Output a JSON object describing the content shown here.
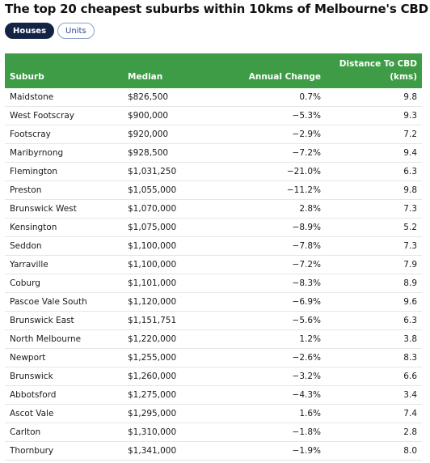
{
  "title": "The top 20 cheapest suburbs within 10kms of Melbourne's CBD",
  "toggles": [
    {
      "label": "Houses",
      "active": true
    },
    {
      "label": "Units",
      "active": false
    }
  ],
  "chart_data": {
    "type": "table",
    "columns": [
      "Suburb",
      "Median",
      "Annual Change",
      "Distance To CBD (kms)"
    ],
    "column_header_lines": [
      [
        "Suburb"
      ],
      [
        "Median"
      ],
      [
        "Annual Change"
      ],
      [
        "Distance To CBD",
        "(kms)"
      ]
    ],
    "rows": [
      {
        "suburb": "Maidstone",
        "median": "$826,500",
        "change": "0.7%",
        "distance": "9.8"
      },
      {
        "suburb": "West Footscray",
        "median": "$900,000",
        "change": "−5.3%",
        "distance": "9.3"
      },
      {
        "suburb": "Footscray",
        "median": "$920,000",
        "change": "−2.9%",
        "distance": "7.2"
      },
      {
        "suburb": "Maribyrnong",
        "median": "$928,500",
        "change": "−7.2%",
        "distance": "9.4"
      },
      {
        "suburb": "Flemington",
        "median": "$1,031,250",
        "change": "−21.0%",
        "distance": "6.3"
      },
      {
        "suburb": "Preston",
        "median": "$1,055,000",
        "change": "−11.2%",
        "distance": "9.8"
      },
      {
        "suburb": "Brunswick West",
        "median": "$1,070,000",
        "change": "2.8%",
        "distance": "7.3"
      },
      {
        "suburb": "Kensington",
        "median": "$1,075,000",
        "change": "−8.9%",
        "distance": "5.2"
      },
      {
        "suburb": "Seddon",
        "median": "$1,100,000",
        "change": "−7.8%",
        "distance": "7.3"
      },
      {
        "suburb": "Yarraville",
        "median": "$1,100,000",
        "change": "−7.2%",
        "distance": "7.9"
      },
      {
        "suburb": "Coburg",
        "median": "$1,101,000",
        "change": "−8.3%",
        "distance": "8.9"
      },
      {
        "suburb": "Pascoe Vale South",
        "median": "$1,120,000",
        "change": "−6.9%",
        "distance": "9.6"
      },
      {
        "suburb": "Brunswick East",
        "median": "$1,151,751",
        "change": "−5.6%",
        "distance": "6.3"
      },
      {
        "suburb": "North Melbourne",
        "median": "$1,220,000",
        "change": "1.2%",
        "distance": "3.8"
      },
      {
        "suburb": "Newport",
        "median": "$1,255,000",
        "change": "−2.6%",
        "distance": "8.3"
      },
      {
        "suburb": "Brunswick",
        "median": "$1,260,000",
        "change": "−3.2%",
        "distance": "6.6"
      },
      {
        "suburb": "Abbotsford",
        "median": "$1,275,000",
        "change": "−4.3%",
        "distance": "3.4"
      },
      {
        "suburb": "Ascot Vale",
        "median": "$1,295,000",
        "change": "1.6%",
        "distance": "7.4"
      },
      {
        "suburb": "Carlton",
        "median": "$1,310,000",
        "change": "−1.8%",
        "distance": "2.8"
      },
      {
        "suburb": "Thornbury",
        "median": "$1,341,000",
        "change": "−1.9%",
        "distance": "8.0"
      }
    ]
  },
  "colors": {
    "header_bg": "#3e9c46",
    "header_text": "#ffffff",
    "toggle_active_bg": "#132346",
    "row_border": "#e6e6e6"
  }
}
